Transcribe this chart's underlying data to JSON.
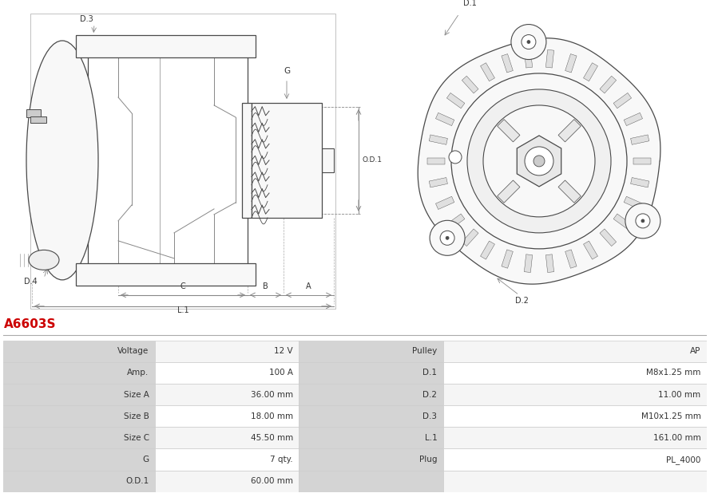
{
  "title": "A6603S",
  "title_color": "#cc0000",
  "bg_color": "#ffffff",
  "table_data": [
    [
      "Voltage",
      "12 V",
      "Pulley",
      "AP"
    ],
    [
      "Amp.",
      "100 A",
      "D.1",
      "M8x1.25 mm"
    ],
    [
      "Size A",
      "36.00 mm",
      "D.2",
      "11.00 mm"
    ],
    [
      "Size B",
      "18.00 mm",
      "D.3",
      "M10x1.25 mm"
    ],
    [
      "Size C",
      "45.50 mm",
      "L.1",
      "161.00 mm"
    ],
    [
      "G",
      "7 qty.",
      "Plug",
      "PL_4000"
    ],
    [
      "O.D.1",
      "60.00 mm",
      "",
      ""
    ]
  ],
  "lc": "#4a4a4a",
  "lc2": "#888888",
  "lc3": "#aaaaaa",
  "face_color": "#f8f8f8",
  "header_bg": "#d4d4d4",
  "value_bg": "#ffffff",
  "border_color": "#cccccc"
}
